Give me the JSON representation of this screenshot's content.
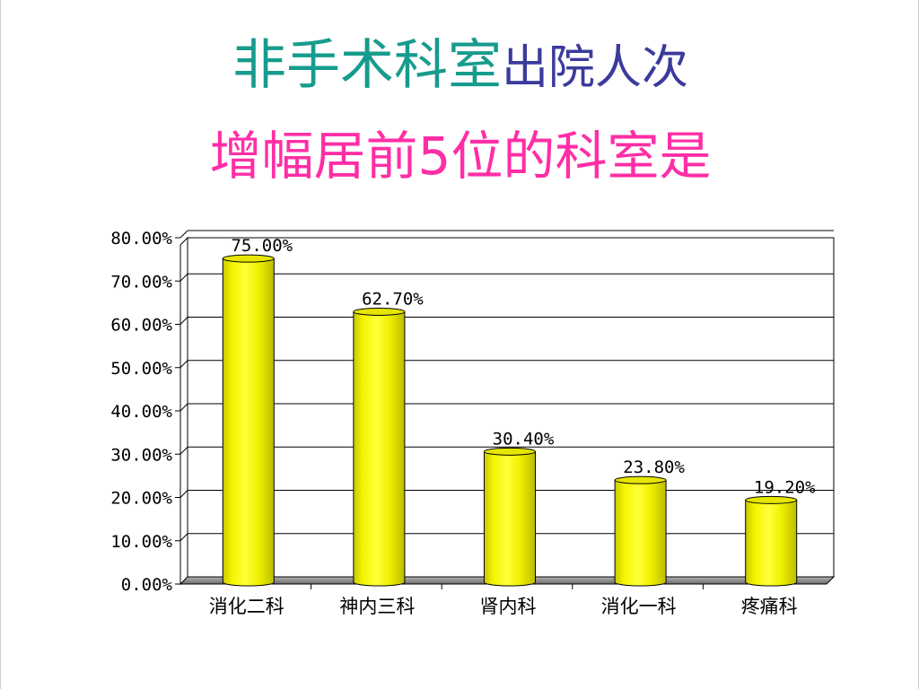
{
  "title": {
    "line1_part1": "非手术科室",
    "line1_part2": "出院人次",
    "line2": "增幅居前5位的科室是"
  },
  "chart_data": {
    "type": "bar",
    "categories": [
      "消化二科",
      "神内三科",
      "肾内科",
      "消化一科",
      "疼痛科"
    ],
    "values": [
      75.0,
      62.7,
      30.4,
      23.8,
      19.2
    ],
    "value_labels": [
      "75.00%",
      "62.70%",
      "30.40%",
      "23.80%",
      "19.20%"
    ],
    "ylim": [
      0,
      80
    ],
    "ytick_values": [
      0,
      10,
      20,
      30,
      40,
      50,
      60,
      70,
      80
    ],
    "ytick_labels": [
      "0.00%",
      "10.00%",
      "20.00%",
      "30.00%",
      "40.00%",
      "50.00%",
      "60.00%",
      "70.00%",
      "80.00%"
    ],
    "grid": true,
    "bar_style": "3d-cylinder",
    "colors": {
      "bar": "#f2f200",
      "bar_shade": "#c9c900",
      "bar_top": "#e6e600",
      "floor": "#8c8c8c",
      "grid": "#000000"
    }
  }
}
